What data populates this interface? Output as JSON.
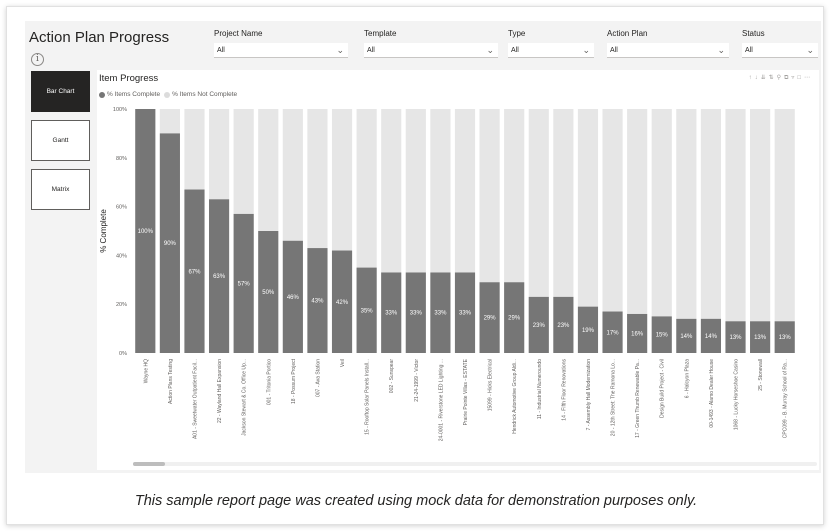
{
  "page": {
    "title": "Action Plan Progress",
    "info_glyph": "i",
    "footer": "This sample report page was created using mock data for demonstration purposes only."
  },
  "filters": [
    {
      "label": "Project Name",
      "value": "All"
    },
    {
      "label": "Template",
      "value": "All"
    },
    {
      "label": "Type",
      "value": "All"
    },
    {
      "label": "Action Plan",
      "value": "All"
    },
    {
      "label": "Status",
      "value": "All"
    }
  ],
  "nav": [
    {
      "label": "Bar Chart",
      "active": true
    },
    {
      "label": "Gantt",
      "active": false
    },
    {
      "label": "Matrix",
      "active": false
    }
  ],
  "visual": {
    "title": "Item Progress",
    "legend": [
      {
        "label": "% Items Complete",
        "color": "#767676"
      },
      {
        "label": "% Items Not Complete",
        "color": "#dcdcdc"
      }
    ],
    "toolbar_icons": [
      "up-arrow-icon",
      "down-arrow-icon",
      "double-down-icon",
      "expand-icon",
      "pin-icon",
      "copy-icon",
      "filter-icon",
      "focus-icon",
      "more-icon"
    ]
  },
  "chart_data": {
    "type": "bar",
    "stacked": true,
    "ylabel": "% Complete",
    "ylim": [
      0,
      100
    ],
    "yticks": [
      "0%",
      "20%",
      "40%",
      "60%",
      "80%",
      "100%"
    ],
    "complete_color": "#767676",
    "remaining_color": "#e6e6e6",
    "categories": [
      "Wayne HQ",
      "Action Plans Testing",
      "A01 - Sweetwater Outpatient Facil...",
      "22 - Wayland Hall Expansion",
      "Jackson Stewart & Co. Office Up...",
      "001 - Tritonia Portico",
      "18 - Possum Project",
      "007 - Ava Station",
      "Veil",
      "15 - Rooftop Solar Panels Install...",
      "002 - Sunspear",
      "21-24-1999 - Victor",
      "24-0001 - Riverstone LED Lighting ...",
      "Prairie Pointe Villas - ESTATE",
      "15099 - Hicks Electrical",
      "Hendrick Automotive Group Aldi...",
      "11 - Industrial Numeroundo",
      "14 - Fifth Floor Renovations",
      "7 - Assembly Hall Modernization",
      "20 - 12th Street: The Ramona Lo...",
      "17 - Green Thumb Renewable Pa...",
      "Design Build Project - Civil",
      "6 - Halcyon Plaza",
      "00-1493 - Alamo Dealer House",
      "1068 - Lucky Horseshoe Casino",
      "25 - Stonewall",
      "CPC099 - B. Murray School of Ra..."
    ],
    "series": [
      {
        "name": "% Items Complete",
        "values": [
          100,
          90,
          67,
          63,
          57,
          50,
          46,
          43,
          42,
          35,
          33,
          33,
          33,
          33,
          29,
          29,
          23,
          23,
          19,
          17,
          16,
          15,
          14,
          14,
          13,
          13,
          13
        ]
      },
      {
        "name": "% Items Not Complete",
        "values": [
          0,
          10,
          33,
          37,
          43,
          50,
          54,
          57,
          58,
          65,
          67,
          67,
          67,
          67,
          71,
          71,
          77,
          77,
          81,
          83,
          84,
          85,
          86,
          86,
          87,
          87,
          87
        ]
      }
    ],
    "data_labels": [
      "100%",
      "90%",
      "67%",
      "63%",
      "57%",
      "50%",
      "46%",
      "43%",
      "42%",
      "35%",
      "33%",
      "33%",
      "33%",
      "33%",
      "29%",
      "29%",
      "23%",
      "23%",
      "19%",
      "17%",
      "16%",
      "15%",
      "14%",
      "14%",
      "13%",
      "13%",
      "13%"
    ]
  }
}
